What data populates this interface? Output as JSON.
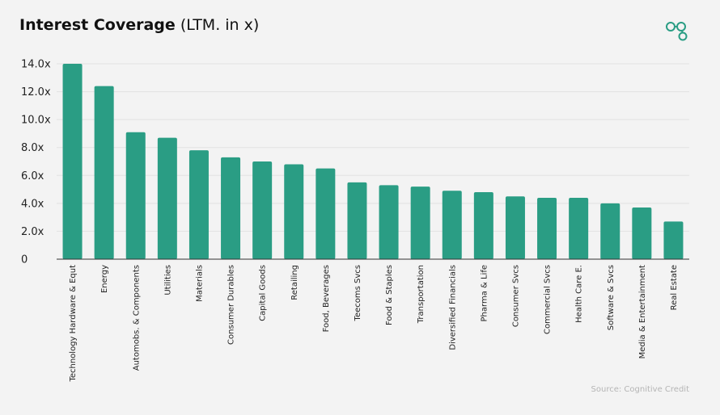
{
  "header": {
    "title_bold": "Interest Coverage",
    "title_suffix": " (LTM. in x)"
  },
  "logo": {
    "icon": "linked-circles-icon",
    "color": "#2a9d84"
  },
  "source": "Source: Cognitive Credit",
  "chart_data": {
    "type": "bar",
    "title": "Interest Coverage (LTM. in x)",
    "xlabel": "",
    "ylabel": "",
    "ylim": [
      0,
      14
    ],
    "yticks": [
      0,
      2,
      4,
      6,
      8,
      10,
      12,
      14
    ],
    "ytick_labels": [
      "0",
      "2.0x",
      "4.0x",
      "6.0x",
      "8.0x",
      "10.0x",
      "12.0x",
      "14.0x"
    ],
    "grid": true,
    "bar_color": "#2a9d84",
    "categories": [
      "Technology Hardware & Equt",
      "Energy",
      "Automobs. & Components",
      "Utilities",
      "Materials",
      "Consumer Durables",
      "Capital Goods",
      "Retailing",
      "Food, Beverages",
      "Teecoms Svcs",
      "Food & Staples",
      "Transportation",
      "Diversified Financials",
      "Pharma & Life",
      "Consumer Svcs",
      "Commercial Svcs",
      "Health Care E.",
      "Software & Svcs",
      "Media & Entertainment",
      "Real Estate"
    ],
    "values": [
      14.0,
      12.4,
      9.1,
      8.7,
      7.8,
      7.3,
      7.0,
      6.8,
      6.5,
      5.5,
      5.3,
      5.2,
      4.9,
      4.8,
      4.5,
      4.4,
      4.4,
      4.0,
      3.7,
      2.7
    ]
  }
}
